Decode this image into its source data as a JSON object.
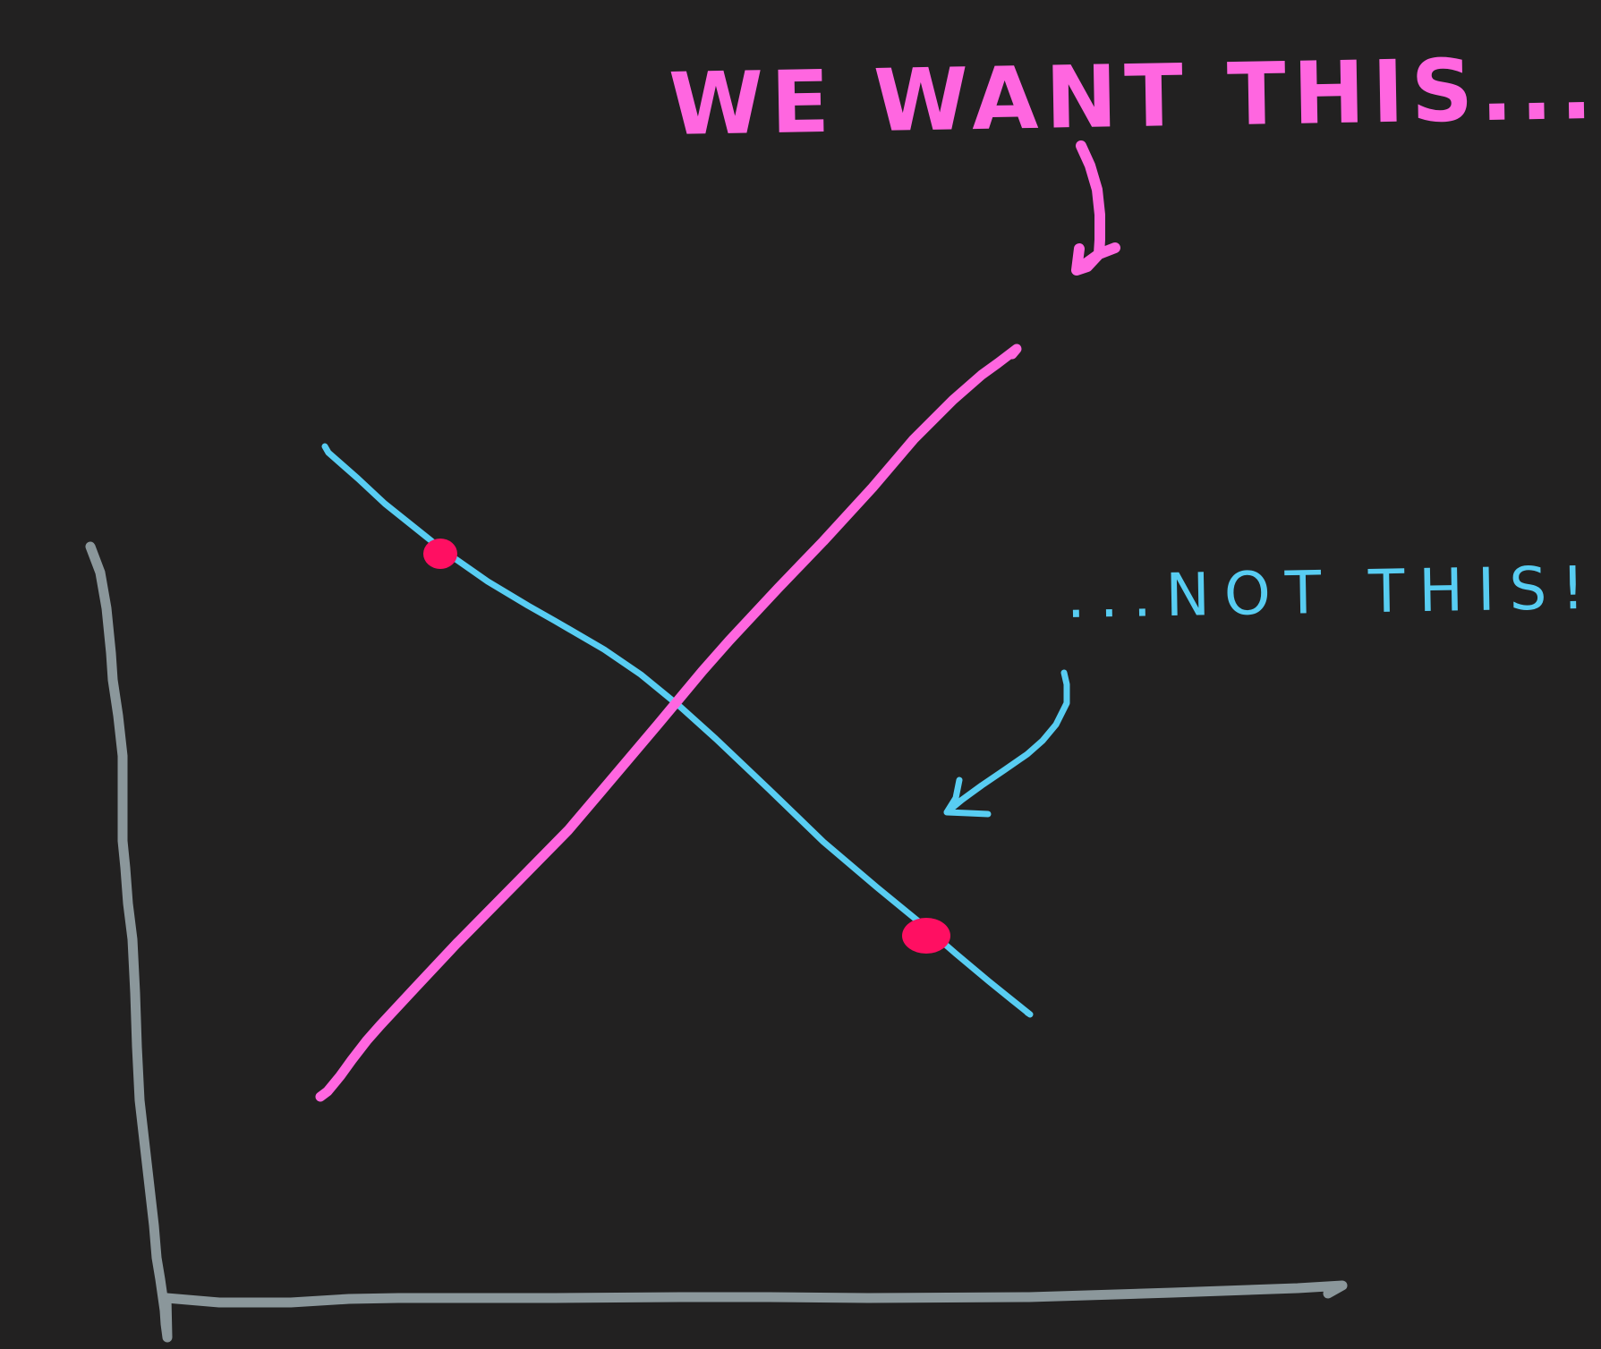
{
  "annotations": {
    "we_want": "WE WANT THIS...",
    "not_this": "...NOT THIS!"
  },
  "colors": {
    "background": "#222121",
    "pink_line": "#ff66e0",
    "blue_line": "#58cdf2",
    "dot": "#ff0f62",
    "axes": "#8b979b"
  }
}
